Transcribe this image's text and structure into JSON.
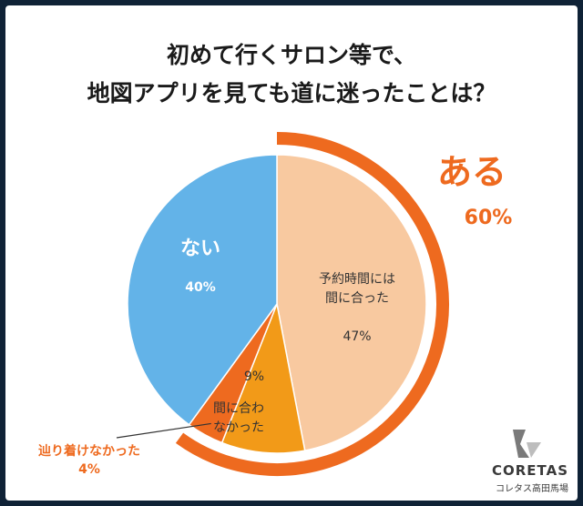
{
  "title_lines": [
    "初めて行くサロン等で、",
    "地図アプリを見ても道に迷ったことは？"
  ],
  "colors": {
    "blue": "#63b3e8",
    "light_orange": "#f8c9a0",
    "mid_orange": "#f29a18",
    "dark_orange": "#ee6a1f",
    "ring": "#ee6a1f"
  },
  "chart_data": {
    "type": "pie",
    "title": "初めて行くサロン等で、地図アプリを見ても道に迷ったことは？",
    "slices": [
      {
        "label_lines": [
          "予約時間には",
          "間に合った"
        ],
        "value": 47,
        "value_label": "47%",
        "color": "#f8c9a0"
      },
      {
        "label_lines": [
          "間に合わ",
          "なかった"
        ],
        "value": 9,
        "value_label": "9%",
        "color": "#f29a18"
      },
      {
        "label_lines": [
          "辿り着けなかった"
        ],
        "value": 4,
        "value_label": "4%",
        "color": "#ee6a1f"
      },
      {
        "label_lines": [
          "ない"
        ],
        "value": 40,
        "value_label": "40%",
        "color": "#63b3e8"
      }
    ],
    "group": {
      "label": "ある",
      "value": 60,
      "value_label": "60%"
    }
  },
  "logo": {
    "name": "CORETAS",
    "sub": "コレタス高田馬場"
  }
}
